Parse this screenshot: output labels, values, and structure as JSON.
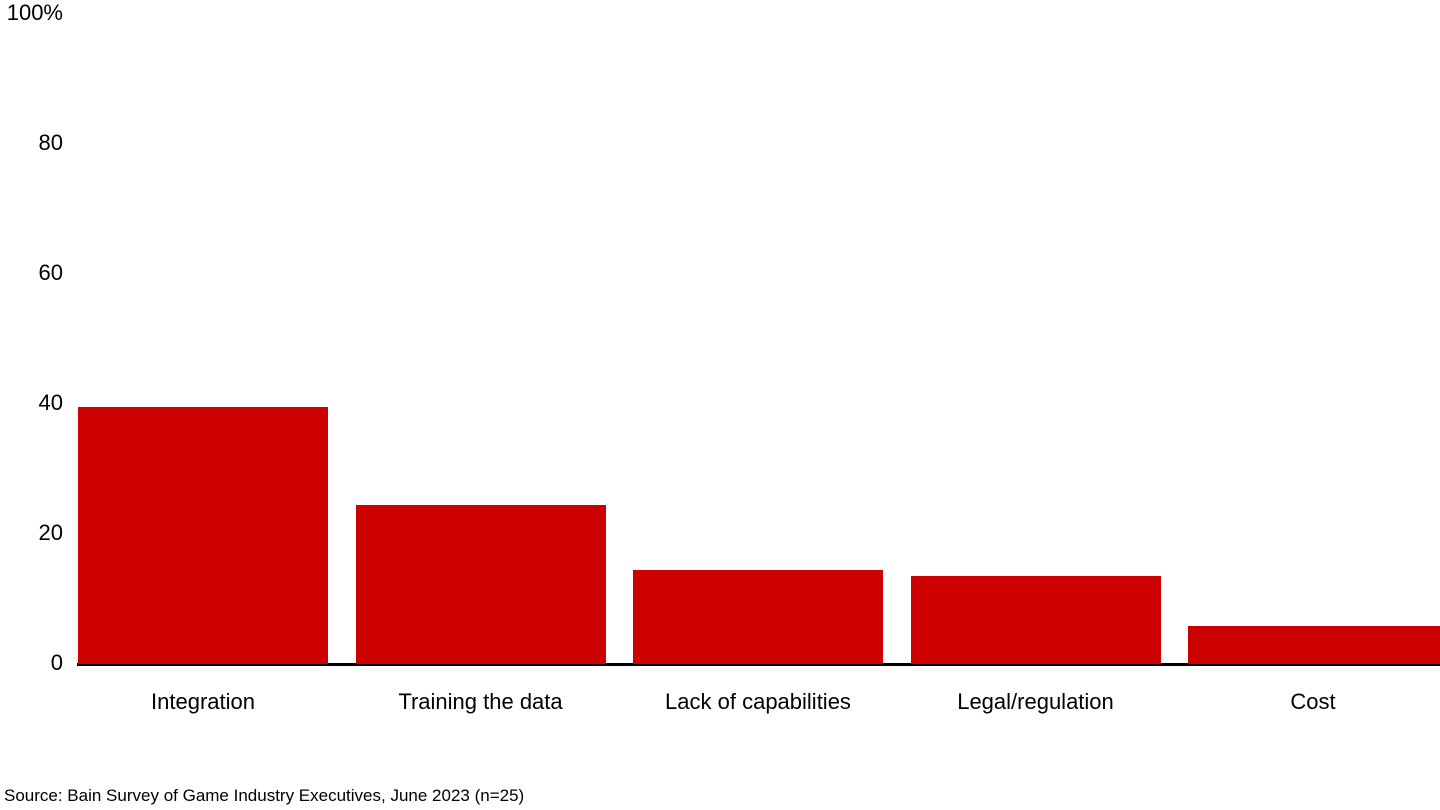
{
  "chart_data": {
    "type": "bar",
    "title": "",
    "categories": [
      "Integration",
      "Training the data",
      "Lack of capabilities",
      "Legal/regulation",
      "Cost"
    ],
    "values": [
      39.5,
      24.5,
      14.5,
      13.5,
      5.8
    ],
    "ylabel": "",
    "xlabel": "",
    "ylim": [
      0,
      100
    ],
    "yticks": [
      {
        "value": 100,
        "label": "100%"
      },
      {
        "value": 80,
        "label": "80"
      },
      {
        "value": 60,
        "label": "60"
      },
      {
        "value": 40,
        "label": "40"
      },
      {
        "value": 20,
        "label": "20"
      },
      {
        "value": 0,
        "label": "0"
      }
    ],
    "grid": false,
    "legend": false,
    "bar_color": "#CC0000",
    "axis_color": "#000000",
    "background_color": "#FFFFFF",
    "source": "Source: Bain Survey of Game Industry Executives, June 2023 (n=25)"
  }
}
